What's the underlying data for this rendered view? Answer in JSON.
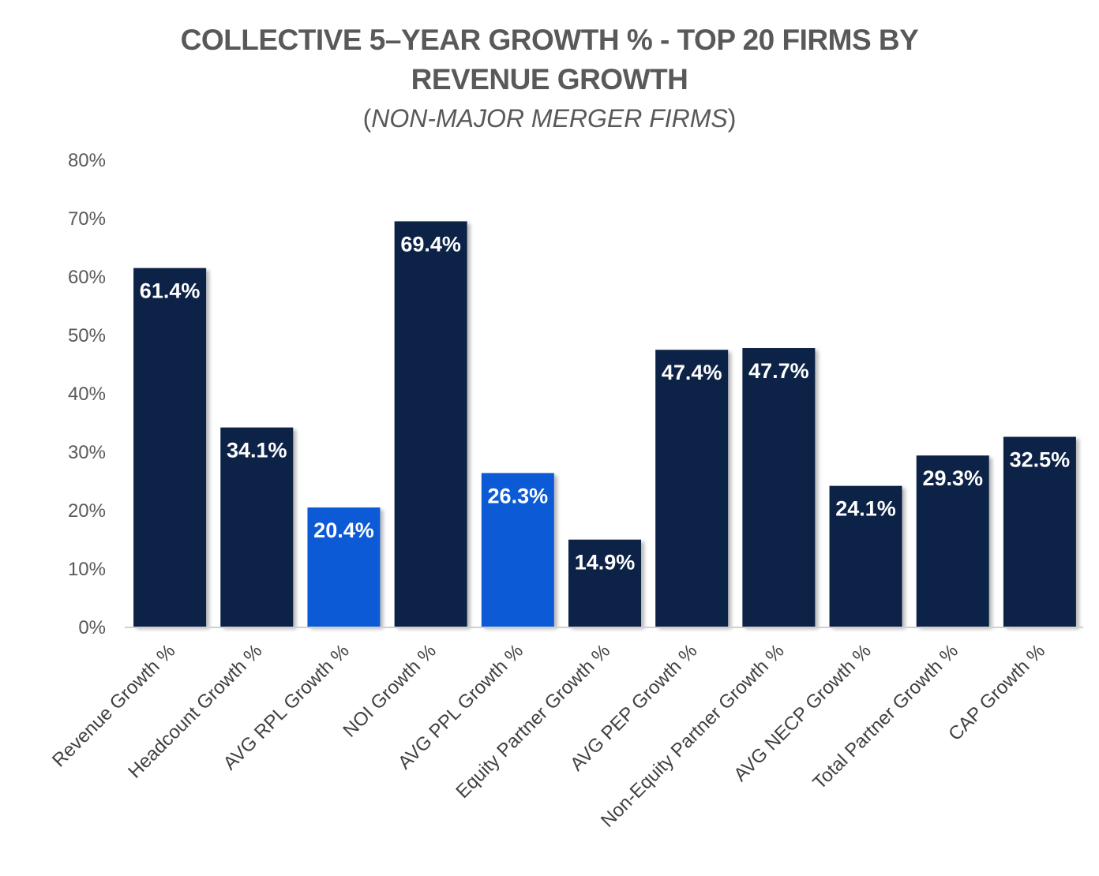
{
  "chart_data": {
    "type": "bar",
    "title_line_1": "COLLECTIVE 5–YEAR GROWTH % - TOP 20 FIRMS BY",
    "title_line_2": "REVENUE GROWTH",
    "subtitle_open": "(",
    "subtitle": "NON-MAJOR MERGER FIRMS",
    "subtitle_close": ")",
    "xlabel": "",
    "ylabel": "",
    "ylim": [
      0,
      80
    ],
    "y_ticks": [
      "0%",
      "10%",
      "20%",
      "30%",
      "40%",
      "50%",
      "60%",
      "70%",
      "80%"
    ],
    "grid": false,
    "legend": "none",
    "colors": {
      "default": "#0b2147",
      "highlight": "#0a5ad6",
      "baseline": "#d0d0d0"
    },
    "categories": [
      "Revenue Growth %",
      "Headcount Growth %",
      "AVG RPL Growth %",
      "NOI Growth %",
      "AVG PPL Growth %",
      "Equity Partner Growth %",
      "AVG PEP Growth %",
      "Non-Equity Partner Growth %",
      "AVG NECP Growth %",
      "Total Partner Growth %",
      "CAP Growth %"
    ],
    "values": [
      61.4,
      34.1,
      20.4,
      69.4,
      26.3,
      14.9,
      47.4,
      47.7,
      24.1,
      29.3,
      32.5
    ],
    "data_labels": [
      "61.4%",
      "34.1%",
      "20.4%",
      "69.4%",
      "26.3%",
      "14.9%",
      "47.4%",
      "47.7%",
      "24.1%",
      "29.3%",
      "32.5%"
    ],
    "highlighted": [
      false,
      false,
      true,
      false,
      true,
      false,
      false,
      false,
      false,
      false,
      false
    ]
  }
}
